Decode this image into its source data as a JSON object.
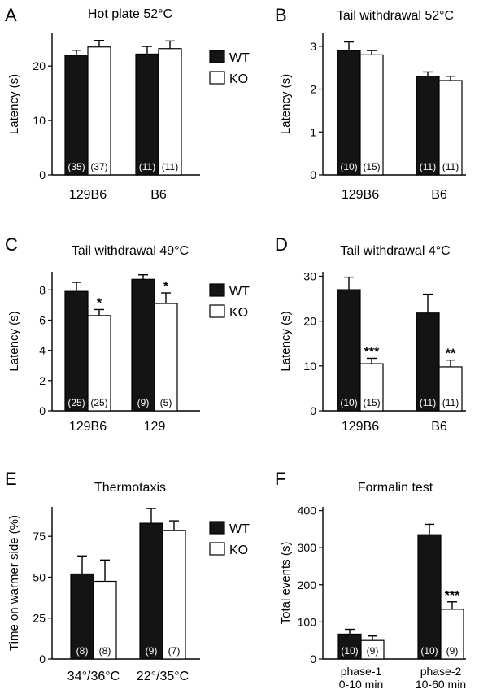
{
  "colors": {
    "wt": "#141414",
    "ko": "#ffffff",
    "axis": "#000000"
  },
  "chart_data": [
    {
      "id": "A",
      "letter": "A",
      "type": "bar",
      "title": "Hot plate 52°C",
      "ylabel": "Latency (s)",
      "ylim": [
        0,
        26
      ],
      "yticks": [
        0,
        10,
        20
      ],
      "categories": [
        "129B6",
        "B6"
      ],
      "series": [
        {
          "name": "WT",
          "values": [
            22,
            22.2
          ],
          "errors": [
            0.9,
            1.4
          ],
          "n": [
            "(35)",
            "(11)"
          ],
          "sig": [
            "",
            ""
          ]
        },
        {
          "name": "KO",
          "values": [
            23.5,
            23.2
          ],
          "errors": [
            1.2,
            1.4
          ],
          "n": [
            "(37)",
            "(11)"
          ],
          "sig": [
            "",
            ""
          ]
        }
      ],
      "legend": [
        "WT",
        "KO"
      ]
    },
    {
      "id": "B",
      "letter": "B",
      "type": "bar",
      "title": "Tail withdrawal 52°C",
      "ylabel": "Latency (s)",
      "ylim": [
        0,
        3.3
      ],
      "yticks": [
        0,
        1,
        2,
        3
      ],
      "categories": [
        "129B6",
        "B6"
      ],
      "series": [
        {
          "name": "WT",
          "values": [
            2.9,
            2.3
          ],
          "errors": [
            0.2,
            0.1
          ],
          "n": [
            "(10)",
            "(11)"
          ],
          "sig": [
            "",
            ""
          ]
        },
        {
          "name": "KO",
          "values": [
            2.8,
            2.2
          ],
          "errors": [
            0.1,
            0.1
          ],
          "n": [
            "(15)",
            "(11)"
          ],
          "sig": [
            "",
            ""
          ]
        }
      ],
      "legend": []
    },
    {
      "id": "C",
      "letter": "C",
      "type": "bar",
      "title": "Tail withdrawal 49°C",
      "ylabel": "Latency (s)",
      "ylim": [
        0,
        9.2
      ],
      "yticks": [
        0,
        2,
        4,
        6,
        8
      ],
      "categories": [
        "129B6",
        "129"
      ],
      "series": [
        {
          "name": "WT",
          "values": [
            7.9,
            8.7
          ],
          "errors": [
            0.6,
            0.3
          ],
          "n": [
            "(25)",
            "(9)"
          ],
          "sig": [
            "",
            ""
          ]
        },
        {
          "name": "KO",
          "values": [
            6.3,
            7.1
          ],
          "errors": [
            0.4,
            0.7
          ],
          "n": [
            "(25)",
            "(5)"
          ],
          "sig": [
            "*",
            "*"
          ]
        }
      ],
      "legend": [
        "WT",
        "KO"
      ]
    },
    {
      "id": "D",
      "letter": "D",
      "type": "bar",
      "title": "Tail withdrawal 4°C",
      "ylabel": "Latency (s)",
      "ylim": [
        0,
        31
      ],
      "yticks": [
        0,
        10,
        20,
        30
      ],
      "categories": [
        "129B6",
        "B6"
      ],
      "series": [
        {
          "name": "WT",
          "values": [
            27,
            21.8
          ],
          "errors": [
            2.8,
            4.2
          ],
          "n": [
            "(10)",
            "(11)"
          ],
          "sig": [
            "",
            ""
          ]
        },
        {
          "name": "KO",
          "values": [
            10.5,
            9.8
          ],
          "errors": [
            1.2,
            1.5
          ],
          "n": [
            "(15)",
            "(11)"
          ],
          "sig": [
            "***",
            "**"
          ]
        }
      ],
      "legend": []
    },
    {
      "id": "E",
      "letter": "E",
      "type": "bar",
      "title": "Thermotaxis",
      "ylabel": "Time on warmer side (%)",
      "ylim": [
        0,
        93
      ],
      "yticks": [
        0,
        25,
        50,
        75
      ],
      "categories": [
        "34°/36°C",
        "22°/35°C"
      ],
      "series": [
        {
          "name": "WT",
          "values": [
            52,
            83
          ],
          "errors": [
            11,
            9
          ],
          "n": [
            "(8)",
            "(9)"
          ],
          "sig": [
            "",
            ""
          ]
        },
        {
          "name": "KO",
          "values": [
            47.5,
            78.5
          ],
          "errors": [
            13,
            6
          ],
          "n": [
            "(8)",
            "(7)"
          ],
          "sig": [
            "",
            ""
          ]
        }
      ],
      "legend": [
        "WT",
        "KO"
      ]
    },
    {
      "id": "F",
      "letter": "F",
      "type": "bar",
      "title": "Formalin test",
      "ylabel": "Total events (s)",
      "ylim": [
        0,
        410
      ],
      "yticks": [
        0,
        100,
        200,
        300,
        400
      ],
      "categories": [
        "phase-1\n0-10 min",
        "phase-2\n10-60 min"
      ],
      "series": [
        {
          "name": "WT",
          "values": [
            67,
            335
          ],
          "errors": [
            13,
            28
          ],
          "n": [
            "(10)",
            "(10)"
          ],
          "sig": [
            "",
            ""
          ]
        },
        {
          "name": "KO",
          "values": [
            50,
            134
          ],
          "errors": [
            12,
            20
          ],
          "n": [
            "(9)",
            "(9)"
          ],
          "sig": [
            "",
            "***"
          ]
        }
      ],
      "legend": []
    }
  ]
}
